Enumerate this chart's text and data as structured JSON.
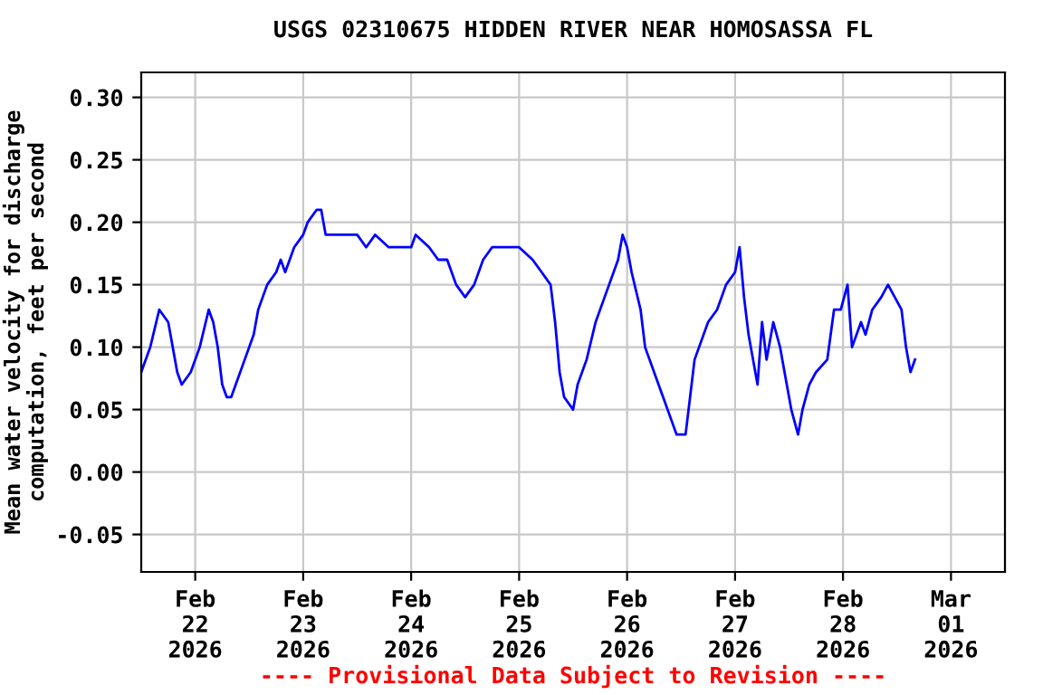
{
  "chart_data": {
    "type": "line",
    "title": "USGS 02310675 HIDDEN RIVER NEAR HOMOSASSA FL",
    "ylabel": "Mean water velocity for discharge\ncomputation, feet per second",
    "annotations": [
      "---- Provisional Data Subject to Revision ----"
    ],
    "series": [
      {
        "color": "#0000ff",
        "x": [
          "2026-02-21T12:00",
          "2026-02-21T14:00",
          "2026-02-21T16:00",
          "2026-02-21T18:00",
          "2026-02-21T20:00",
          "2026-02-21T21:00",
          "2026-02-21T23:00",
          "2026-02-22T01:00",
          "2026-02-22T03:00",
          "2026-02-22T04:00",
          "2026-02-22T05:00",
          "2026-02-22T06:00",
          "2026-02-22T07:00",
          "2026-02-22T08:00",
          "2026-02-22T09:00",
          "2026-02-22T11:00",
          "2026-02-22T13:00",
          "2026-02-22T14:00",
          "2026-02-22T15:00",
          "2026-02-22T16:00",
          "2026-02-22T18:00",
          "2026-02-22T19:00",
          "2026-02-22T20:00",
          "2026-02-22T21:00",
          "2026-02-22T22:00",
          "2026-02-23T00:00",
          "2026-02-23T01:00",
          "2026-02-23T03:00",
          "2026-02-23T04:00",
          "2026-02-23T05:00",
          "2026-02-23T08:00",
          "2026-02-23T12:00",
          "2026-02-23T14:00",
          "2026-02-23T16:00",
          "2026-02-23T19:00",
          "2026-02-24T00:00",
          "2026-02-24T01:00",
          "2026-02-24T04:00",
          "2026-02-24T06:00",
          "2026-02-24T08:00",
          "2026-02-24T09:00",
          "2026-02-24T10:00",
          "2026-02-24T12:00",
          "2026-02-24T14:00",
          "2026-02-24T16:00",
          "2026-02-24T18:00",
          "2026-02-25T00:00",
          "2026-02-25T03:00",
          "2026-02-25T05:00",
          "2026-02-25T07:00",
          "2026-02-25T08:00",
          "2026-02-25T09:00",
          "2026-02-25T10:00",
          "2026-02-25T12:00",
          "2026-02-25T13:00",
          "2026-02-25T15:00",
          "2026-02-25T17:00",
          "2026-02-25T19:00",
          "2026-02-25T20:00",
          "2026-02-25T22:00",
          "2026-02-25T23:00",
          "2026-02-26T00:00",
          "2026-02-26T01:00",
          "2026-02-26T03:00",
          "2026-02-26T04:00",
          "2026-02-26T06:00",
          "2026-02-26T08:00",
          "2026-02-26T10:00",
          "2026-02-26T11:00",
          "2026-02-26T13:00",
          "2026-02-26T14:00",
          "2026-02-26T15:00",
          "2026-02-26T16:00",
          "2026-02-26T18:00",
          "2026-02-26T20:00",
          "2026-02-26T22:00",
          "2026-02-27T00:00",
          "2026-02-27T01:00",
          "2026-02-27T02:00",
          "2026-02-27T03:00",
          "2026-02-27T05:00",
          "2026-02-27T06:00",
          "2026-02-27T07:00",
          "2026-02-27T08:30",
          "2026-02-27T10:00",
          "2026-02-27T11:00",
          "2026-02-27T12:30",
          "2026-02-27T14:00",
          "2026-02-27T15:00",
          "2026-02-27T16:30",
          "2026-02-27T18:00",
          "2026-02-27T20:30",
          "2026-02-27T22:00",
          "2026-02-27T23:30",
          "2026-02-28T01:00",
          "2026-02-28T02:00",
          "2026-02-28T04:00",
          "2026-02-28T05:00",
          "2026-02-28T06:30",
          "2026-02-28T08:30",
          "2026-02-28T10:00",
          "2026-02-28T11:30",
          "2026-02-28T13:00",
          "2026-02-28T14:00",
          "2026-02-28T15:00",
          "2026-02-28T16:00"
        ],
        "values": [
          0.08,
          0.1,
          0.13,
          0.12,
          0.08,
          0.07,
          0.08,
          0.1,
          0.13,
          0.12,
          0.1,
          0.07,
          0.06,
          0.06,
          0.07,
          0.09,
          0.11,
          0.13,
          0.14,
          0.15,
          0.16,
          0.17,
          0.16,
          0.17,
          0.18,
          0.19,
          0.2,
          0.21,
          0.21,
          0.19,
          0.19,
          0.19,
          0.18,
          0.19,
          0.18,
          0.18,
          0.19,
          0.18,
          0.17,
          0.17,
          0.16,
          0.15,
          0.14,
          0.15,
          0.17,
          0.18,
          0.18,
          0.17,
          0.16,
          0.15,
          0.12,
          0.08,
          0.06,
          0.05,
          0.07,
          0.09,
          0.12,
          0.14,
          0.15,
          0.17,
          0.19,
          0.18,
          0.16,
          0.13,
          0.1,
          0.08,
          0.06,
          0.04,
          0.03,
          0.03,
          0.06,
          0.09,
          0.1,
          0.12,
          0.13,
          0.15,
          0.16,
          0.18,
          0.14,
          0.11,
          0.07,
          0.12,
          0.09,
          0.12,
          0.1,
          0.08,
          0.05,
          0.03,
          0.05,
          0.07,
          0.08,
          0.09,
          0.13,
          0.13,
          0.15,
          0.1,
          0.12,
          0.11,
          0.13,
          0.14,
          0.15,
          0.14,
          0.13,
          0.1,
          0.08,
          0.09
        ]
      }
    ],
    "xlim": [
      "2026-02-21T12:00",
      "2026-03-01T12:00"
    ],
    "xticks": [
      {
        "value": "2026-02-22",
        "label": "Feb\n22\n2026"
      },
      {
        "value": "2026-02-23",
        "label": "Feb\n23\n2026"
      },
      {
        "value": "2026-02-24",
        "label": "Feb\n24\n2026"
      },
      {
        "value": "2026-02-25",
        "label": "Feb\n25\n2026"
      },
      {
        "value": "2026-02-26",
        "label": "Feb\n26\n2026"
      },
      {
        "value": "2026-02-27",
        "label": "Feb\n27\n2026"
      },
      {
        "value": "2026-02-28",
        "label": "Feb\n28\n2026"
      },
      {
        "value": "2026-03-01",
        "label": "Mar\n01\n2026"
      }
    ],
    "ylim": [
      -0.08,
      0.32
    ],
    "yticks": [
      {
        "value": -0.05,
        "label": "-0.05"
      },
      {
        "value": 0.0,
        "label": "0.00"
      },
      {
        "value": 0.05,
        "label": "0.05"
      },
      {
        "value": 0.1,
        "label": "0.10"
      },
      {
        "value": 0.15,
        "label": "0.15"
      },
      {
        "value": 0.2,
        "label": "0.20"
      },
      {
        "value": 0.25,
        "label": "0.25"
      },
      {
        "value": 0.3,
        "label": "0.30"
      }
    ],
    "grid": true,
    "marker": "none",
    "line_style": "solid"
  }
}
